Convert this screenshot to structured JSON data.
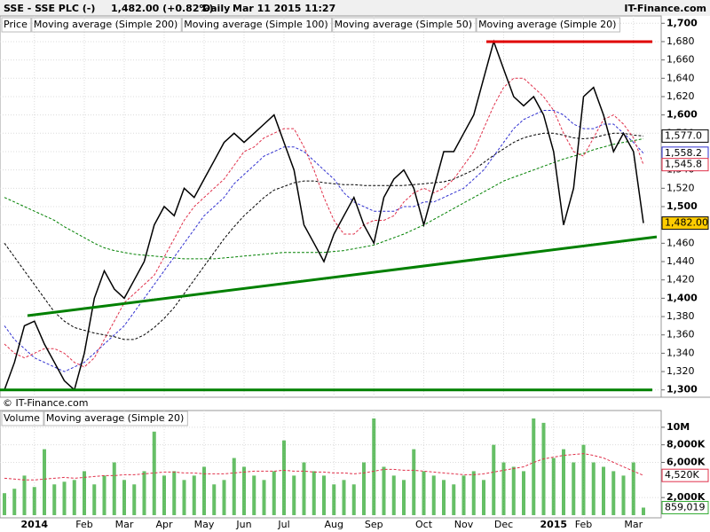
{
  "header": {
    "symbol": "SSE - SSE PLC (-)",
    "quote": "1,482.00 (+0.82%)",
    "period": "Daily",
    "timestamp": "Mar 11 2015 11:27",
    "brand": "IT-Finance.com",
    "copyright": "© IT-Finance.com"
  },
  "chart_data": [
    {
      "type": "line",
      "legend": [
        "Price"
      ],
      "categories": [
        null,
        null,
        null,
        "2014",
        null,
        null,
        null,
        null,
        "Feb",
        null,
        null,
        null,
        "Mar",
        null,
        null,
        null,
        "Apr",
        null,
        null,
        null,
        "May",
        null,
        null,
        null,
        "Jun",
        null,
        null,
        null,
        "Jul",
        null,
        null,
        null,
        null,
        "Aug",
        null,
        null,
        null,
        "Sep",
        null,
        null,
        null,
        null,
        "Oct",
        null,
        null,
        null,
        "Nov",
        null,
        null,
        null,
        "Dec",
        null,
        null,
        null,
        null,
        "2015",
        null,
        null,
        "Feb",
        null,
        null,
        null,
        null,
        "Mar",
        null
      ],
      "series": [
        {
          "name": "Price",
          "color": "#000000",
          "values": [
            1300,
            1330,
            1370,
            1375,
            1350,
            1330,
            1310,
            1300,
            1340,
            1400,
            1430,
            1410,
            1400,
            1420,
            1440,
            1480,
            1500,
            1490,
            1520,
            1510,
            1530,
            1550,
            1570,
            1580,
            1570,
            1580,
            1590,
            1600,
            1570,
            1540,
            1480,
            1460,
            1440,
            1470,
            1490,
            1510,
            1480,
            1460,
            1510,
            1530,
            1540,
            1520,
            1480,
            1520,
            1560,
            1560,
            1580,
            1600,
            1640,
            1680,
            1650,
            1620,
            1610,
            1620,
            1600,
            1560,
            1480,
            1520,
            1620,
            1630,
            1600,
            1560,
            1580,
            1560,
            1482
          ],
          "last_label": "1,482.00"
        },
        {
          "name": "Moving average (Simple 200)",
          "color": "#008000",
          "values": [
            1510,
            1505,
            1500,
            1495,
            1490,
            1485,
            1478,
            1472,
            1466,
            1460,
            1455,
            1452,
            1450,
            1448,
            1447,
            1446,
            1445,
            1444,
            1443,
            1443,
            1443,
            1443,
            1444,
            1445,
            1446,
            1447,
            1448,
            1449,
            1450,
            1450,
            1450,
            1450,
            1450,
            1451,
            1452,
            1454,
            1456,
            1458,
            1462,
            1466,
            1470,
            1475,
            1480,
            1486,
            1492,
            1498,
            1504,
            1510,
            1516,
            1522,
            1528,
            1532,
            1536,
            1540,
            1544,
            1548,
            1552,
            1555,
            1558,
            1562,
            1565,
            1568,
            1570,
            1572,
            1574
          ]
        },
        {
          "name": "Moving average (Simple 100)",
          "color": "#000000",
          "values": [
            1460,
            1445,
            1430,
            1415,
            1400,
            1385,
            1375,
            1368,
            1365,
            1362,
            1360,
            1358,
            1355,
            1355,
            1360,
            1368,
            1378,
            1390,
            1405,
            1420,
            1435,
            1450,
            1465,
            1478,
            1490,
            1500,
            1510,
            1518,
            1522,
            1526,
            1528,
            1528,
            1526,
            1525,
            1524,
            1524,
            1523,
            1523,
            1523,
            1523,
            1523,
            1524,
            1525,
            1526,
            1527,
            1530,
            1535,
            1540,
            1548,
            1556,
            1563,
            1570,
            1575,
            1578,
            1580,
            1580,
            1578,
            1575,
            1574,
            1575,
            1578,
            1580,
            1580,
            1578,
            1577
          ],
          "last_label": "1,577.0"
        },
        {
          "name": "Moving average (Simple 50)",
          "color": "#3030d0",
          "values": [
            1370,
            1355,
            1345,
            1335,
            1330,
            1325,
            1320,
            1325,
            1330,
            1340,
            1350,
            1360,
            1370,
            1385,
            1400,
            1415,
            1430,
            1445,
            1460,
            1475,
            1490,
            1500,
            1510,
            1525,
            1535,
            1545,
            1555,
            1560,
            1565,
            1565,
            1560,
            1550,
            1540,
            1530,
            1515,
            1505,
            1500,
            1495,
            1495,
            1495,
            1500,
            1500,
            1505,
            1505,
            1510,
            1515,
            1520,
            1530,
            1540,
            1555,
            1570,
            1585,
            1595,
            1600,
            1605,
            1605,
            1600,
            1590,
            1585,
            1585,
            1590,
            1590,
            1580,
            1570,
            1558.2
          ],
          "last_label": "1,558.2"
        },
        {
          "name": "Moving average (Simple 20)",
          "color": "#e0304a",
          "values": [
            1350,
            1340,
            1335,
            1340,
            1345,
            1345,
            1340,
            1330,
            1325,
            1335,
            1355,
            1375,
            1395,
            1405,
            1415,
            1425,
            1445,
            1465,
            1485,
            1500,
            1510,
            1520,
            1530,
            1545,
            1560,
            1565,
            1575,
            1580,
            1585,
            1585,
            1565,
            1540,
            1510,
            1485,
            1470,
            1470,
            1480,
            1485,
            1485,
            1490,
            1505,
            1515,
            1520,
            1515,
            1520,
            1530,
            1545,
            1560,
            1585,
            1610,
            1630,
            1640,
            1640,
            1630,
            1620,
            1605,
            1580,
            1560,
            1555,
            1575,
            1595,
            1600,
            1590,
            1575,
            1545.8
          ],
          "last_label": "1,545.8"
        }
      ],
      "lines": [
        {
          "color": "#e00000",
          "values": [
            1680,
            1680
          ]
        },
        {
          "color": "#008000",
          "values": [
            1381,
            1467
          ]
        },
        {
          "color": "#008000",
          "values": [
            1300,
            1300
          ]
        }
      ],
      "ylim": [
        1292,
        1708
      ],
      "yticks": [
        {
          "value": 1300,
          "label": "1,300"
        },
        {
          "value": 1320,
          "label": "1,320"
        },
        {
          "value": 1340,
          "label": "1,340"
        },
        {
          "value": 1360,
          "label": "1,360"
        },
        {
          "value": 1380,
          "label": "1,380"
        },
        {
          "value": 1400,
          "label": "1,400"
        },
        {
          "value": 1420,
          "label": "1,420"
        },
        {
          "value": 1440,
          "label": "1,440"
        },
        {
          "value": 1460,
          "label": "1,460"
        },
        {
          "value": 1480,
          "label": "1,480"
        },
        {
          "value": 1500,
          "label": "1,500"
        },
        {
          "value": 1520,
          "label": "1,520"
        },
        {
          "value": 1540,
          "label": "1,540"
        },
        {
          "value": 1560,
          "label": "1,560"
        },
        {
          "value": 1580,
          "label": "1,580"
        },
        {
          "value": 1600,
          "label": "1,600"
        },
        {
          "value": 1620,
          "label": "1,620"
        },
        {
          "value": 1640,
          "label": "1,640"
        },
        {
          "value": 1660,
          "label": "1,660"
        },
        {
          "value": 1680,
          "label": "1,680"
        },
        {
          "value": 1700,
          "label": "1,700"
        }
      ],
      "grid": true
    },
    {
      "type": "bar",
      "series": [
        {
          "name": "Volume",
          "color": "#33aa33",
          "values": [
            2500,
            3000,
            4500,
            3200,
            7500,
            3500,
            3800,
            4000,
            5000,
            3500,
            4500,
            6000,
            4000,
            3500,
            5000,
            9500,
            4500,
            5000,
            4000,
            4500,
            5500,
            3500,
            4000,
            6500,
            5500,
            4500,
            4000,
            5000,
            8500,
            4500,
            6000,
            5000,
            4500,
            3500,
            4000,
            3500,
            6000,
            11000,
            5500,
            4500,
            4000,
            7500,
            5000,
            4500,
            4000,
            3500,
            4500,
            5000,
            4000,
            8000,
            6000,
            5500,
            5000,
            11000,
            10500,
            6500,
            7500,
            6000,
            8000,
            6000,
            5500,
            5000,
            4500,
            6000,
            859.019
          ],
          "last_label": "859,019"
        },
        {
          "name": "Moving average (Simple 20)",
          "color": "#e0304a",
          "values": [
            4200,
            4100,
            4000,
            4000,
            4100,
            4200,
            4300,
            4200,
            4300,
            4400,
            4500,
            4500,
            4600,
            4600,
            4700,
            4800,
            4900,
            4900,
            4800,
            4800,
            4700,
            4700,
            4700,
            4800,
            4900,
            5000,
            5000,
            5000,
            5100,
            5000,
            5000,
            4900,
            4900,
            4800,
            4800,
            4700,
            4800,
            5000,
            5200,
            5200,
            5100,
            5100,
            5000,
            4900,
            4800,
            4700,
            4600,
            4600,
            4700,
            4900,
            5100,
            5300,
            5500,
            6000,
            6400,
            6600,
            6800,
            6900,
            7000,
            6800,
            6500,
            6000,
            5500,
            5000,
            4520
          ],
          "last_label": "4,520K"
        }
      ],
      "ylim": [
        0,
        11900
      ],
      "yticks": [
        {
          "value": 2000,
          "label": "2,000K"
        },
        {
          "value": 6000,
          "label": "6,000K"
        },
        {
          "value": 8000,
          "label": "8,000K"
        },
        {
          "value": 10000,
          "label": "10M"
        }
      ],
      "grid": true
    }
  ]
}
